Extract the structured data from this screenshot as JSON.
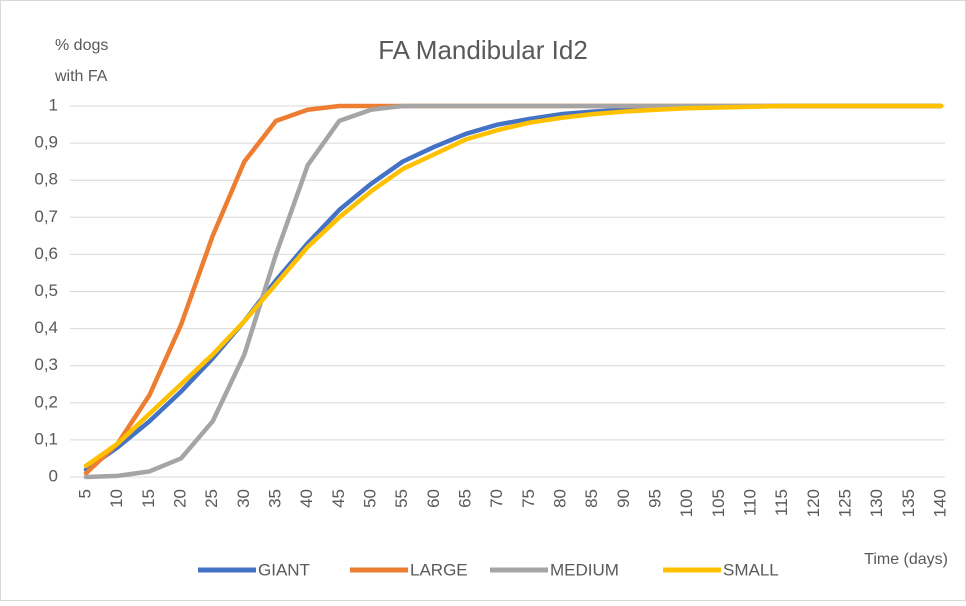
{
  "chart_data": {
    "type": "line",
    "title": "FA Mandibular Id2",
    "ylabel": [
      "% dogs",
      "with FA"
    ],
    "xlabel": "Time (days)",
    "categories": [
      "5",
      "10",
      "15",
      "20",
      "25",
      "30",
      "35",
      "40",
      "45",
      "50",
      "55",
      "60",
      "65",
      "70",
      "75",
      "80",
      "85",
      "90",
      "95",
      "100",
      "105",
      "110",
      "115",
      "120",
      "125",
      "130",
      "135",
      "140"
    ],
    "series": [
      {
        "name": "GIANT",
        "color": "#4472c4",
        "values": [
          0.02,
          0.08,
          0.15,
          0.23,
          0.32,
          0.42,
          0.53,
          0.63,
          0.72,
          0.79,
          0.85,
          0.89,
          0.925,
          0.95,
          0.965,
          0.978,
          0.985,
          0.99,
          0.995,
          0.997,
          0.998,
          0.999,
          1,
          1,
          1,
          1,
          1,
          1
        ]
      },
      {
        "name": "LARGE",
        "color": "#ed7d31",
        "values": [
          0.01,
          0.09,
          0.22,
          0.41,
          0.65,
          0.85,
          0.96,
          0.99,
          1,
          1,
          1,
          1,
          1,
          1,
          1,
          1,
          1,
          1,
          1,
          1,
          1,
          1,
          1,
          1,
          1,
          1,
          1,
          1
        ]
      },
      {
        "name": "MEDIUM",
        "color": "#a5a5a5",
        "values": [
          0,
          0.003,
          0.015,
          0.05,
          0.15,
          0.33,
          0.6,
          0.84,
          0.96,
          0.99,
          1,
          1,
          1,
          1,
          1,
          1,
          1,
          1,
          1,
          1,
          1,
          1,
          1,
          1,
          1,
          1,
          1,
          1
        ]
      },
      {
        "name": "SMALL",
        "color": "#ffc000",
        "values": [
          0.03,
          0.09,
          0.17,
          0.25,
          0.33,
          0.42,
          0.52,
          0.62,
          0.7,
          0.77,
          0.83,
          0.87,
          0.91,
          0.935,
          0.955,
          0.968,
          0.978,
          0.985,
          0.99,
          0.994,
          0.996,
          0.998,
          1,
          1,
          1,
          1,
          1,
          1
        ]
      }
    ],
    "ylim": [
      0,
      1
    ],
    "yticks": [
      0,
      {
        "value": 0.1,
        "label": "0,1"
      },
      {
        "value": 0.2,
        "label": "0,2"
      },
      {
        "value": 0.3,
        "label": "0,3"
      },
      {
        "value": 0.4,
        "label": "0,4"
      },
      {
        "value": 0.5,
        "label": "0,5"
      },
      {
        "value": 0.6,
        "label": "0,6"
      },
      {
        "value": 0.7,
        "label": "0,7"
      },
      {
        "value": 0.8,
        "label": "0,8"
      },
      {
        "value": 0.9,
        "label": "0,9"
      },
      1
    ],
    "grid": true,
    "legend": "bottom"
  }
}
